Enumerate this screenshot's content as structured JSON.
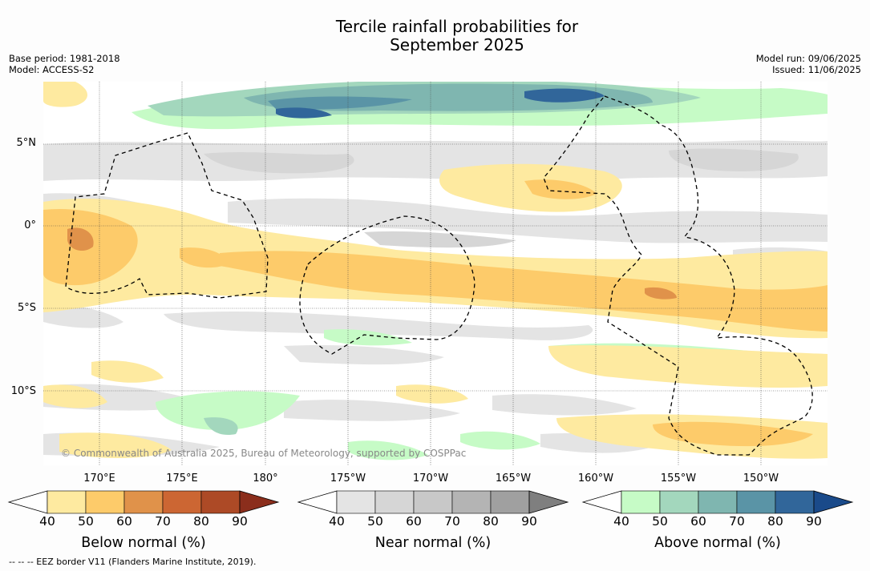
{
  "title": {
    "line1": "Tercile rainfall probabilities for",
    "line2": "September 2025"
  },
  "meta_left": {
    "base_period": "Base period: 1981-2018",
    "model": "Model: ACCESS-S2"
  },
  "meta_right": {
    "model_run": "Model run: 09/06/2025",
    "issued": "Issued: 11/06/2025"
  },
  "map": {
    "lat_labels": [
      "5°N",
      "0°",
      "5°S",
      "10°S"
    ],
    "lon_labels": [
      "170°E",
      "175°E",
      "180°",
      "175°W",
      "170°W",
      "165°W",
      "160°W",
      "155°W",
      "150°W"
    ],
    "copyright": "© Commonwealth of Australia 2025, Bureau of Meteorology, supported by COSPPac"
  },
  "colorbars": [
    {
      "name": "below-normal",
      "title": "Below normal (%)",
      "ticks": [
        "40",
        "50",
        "60",
        "70",
        "80",
        "90"
      ],
      "colors": [
        "#ffffff",
        "#feeaa0",
        "#fdcb6a",
        "#e0924a",
        "#cc6633",
        "#ad4a26",
        "#8b2e1c"
      ]
    },
    {
      "name": "near-normal",
      "title": "Near normal (%)",
      "ticks": [
        "40",
        "50",
        "60",
        "70",
        "80",
        "90"
      ],
      "colors": [
        "#ffffff",
        "#e4e4e4",
        "#d6d6d6",
        "#c8c8c8",
        "#b4b4b4",
        "#a0a0a0",
        "#7f7f7f"
      ]
    },
    {
      "name": "above-normal",
      "title": "Above normal (%)",
      "ticks": [
        "40",
        "50",
        "60",
        "70",
        "80",
        "90"
      ],
      "colors": [
        "#ffffff",
        "#c6fbc6",
        "#a3d7bd",
        "#7fb6b0",
        "#5a94a6",
        "#31669a",
        "#1a4a8a"
      ]
    }
  ],
  "footnote": "--  --  -- EEZ border V11 (Flanders Marine Institute, 2019)."
}
